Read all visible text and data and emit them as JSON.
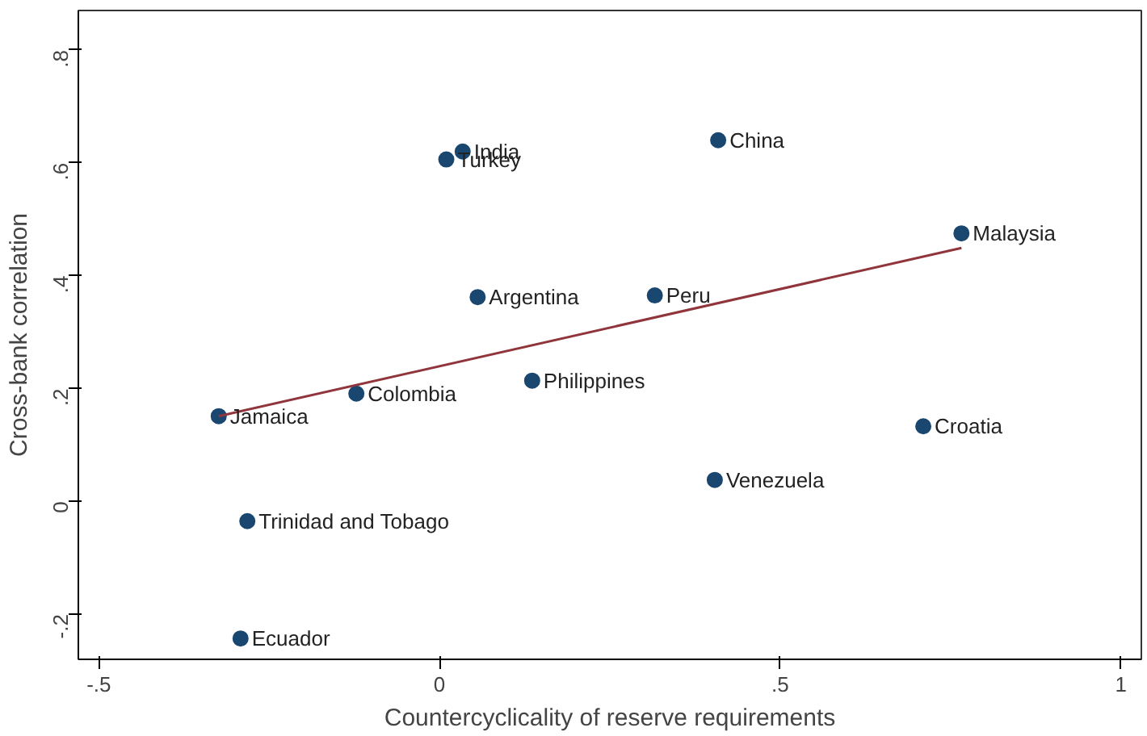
{
  "chart_data": {
    "type": "scatter",
    "xlabel": "Countercyclicality of reserve requirements",
    "ylabel": "Cross-bank correlation",
    "xlim": [
      -0.53,
      1.03
    ],
    "ylim": [
      -0.28,
      0.87
    ],
    "xticks": [
      {
        "value": -0.5,
        "label": "-.5"
      },
      0,
      {
        "value": 0.5,
        "label": ".5"
      },
      1
    ],
    "yticks": [
      {
        "value": -0.2,
        "label": "-.2"
      },
      0,
      {
        "value": 0.2,
        "label": ".2"
      },
      {
        "value": 0.4,
        "label": ".4"
      },
      {
        "value": 0.6,
        "label": ".6"
      },
      {
        "value": 0.8,
        "label": ".8"
      }
    ],
    "marker": "circle",
    "series": [
      {
        "color": "#1a476f",
        "x": [
          0.034,
          0.01,
          0.409,
          0.766,
          0.056,
          0.316,
          0.136,
          -0.122,
          -0.324,
          0.71,
          0.404,
          -0.282,
          -0.292
        ],
        "values": [
          0.62,
          0.606,
          0.64,
          0.475,
          0.362,
          0.365,
          0.214,
          0.191,
          0.151,
          0.133,
          0.038,
          -0.035,
          -0.243
        ]
      },
      {
        "type": "line",
        "marker": "none",
        "color": "#90353b",
        "x": [
          -0.324,
          0.766
        ],
        "values": [
          0.151,
          0.449
        ]
      }
    ],
    "annotations": [
      {
        "text": "India",
        "x": 0.034,
        "y": 0.62
      },
      {
        "text": "Turkey",
        "x": 0.01,
        "y": 0.606
      },
      {
        "text": "China",
        "x": 0.409,
        "y": 0.64
      },
      {
        "text": "Malaysia",
        "x": 0.766,
        "y": 0.475
      },
      {
        "text": "Argentina",
        "x": 0.056,
        "y": 0.362
      },
      {
        "text": "Peru",
        "x": 0.316,
        "y": 0.365
      },
      {
        "text": "Philippines",
        "x": 0.136,
        "y": 0.214
      },
      {
        "text": "Colombia",
        "x": -0.122,
        "y": 0.191
      },
      {
        "text": "Jamaica",
        "x": -0.324,
        "y": 0.151
      },
      {
        "text": "Croatia",
        "x": 0.71,
        "y": 0.133
      },
      {
        "text": "Venezuela",
        "x": 0.404,
        "y": 0.038
      },
      {
        "text": "Trinidad and Tobago",
        "x": -0.282,
        "y": -0.035
      },
      {
        "text": "Ecuador",
        "x": -0.292,
        "y": -0.243
      }
    ]
  }
}
